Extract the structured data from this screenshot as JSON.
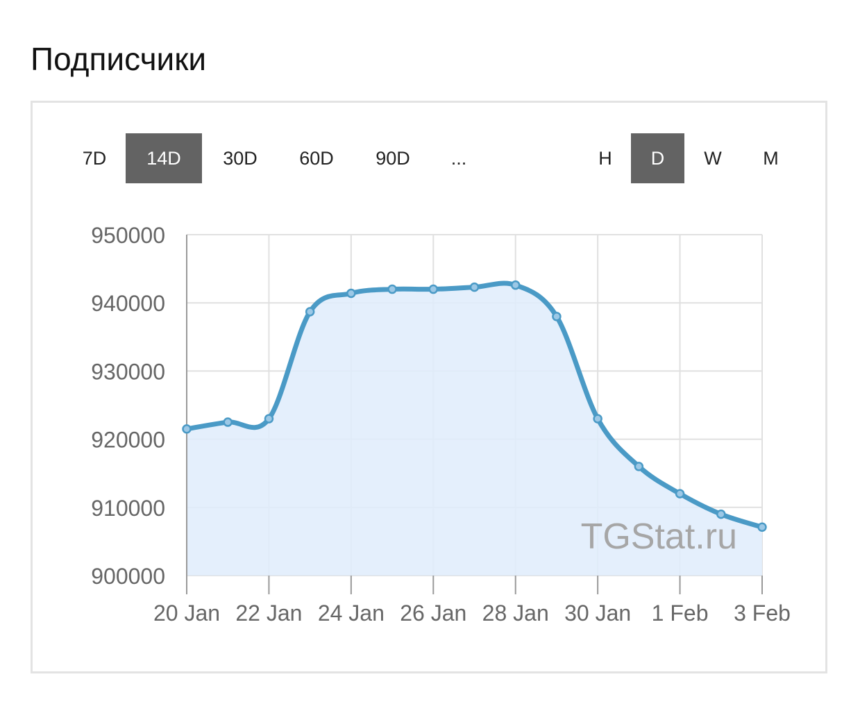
{
  "page": {
    "title": "Подписчики"
  },
  "controls": {
    "ranges": [
      {
        "label": "7D",
        "active": false
      },
      {
        "label": "14D",
        "active": true
      },
      {
        "label": "30D",
        "active": false
      },
      {
        "label": "60D",
        "active": false
      },
      {
        "label": "90D",
        "active": false
      },
      {
        "label": "...",
        "active": false
      }
    ],
    "granularity": [
      {
        "label": "H",
        "active": false
      },
      {
        "label": "D",
        "active": true
      },
      {
        "label": "W",
        "active": false
      },
      {
        "label": "M",
        "active": false
      }
    ]
  },
  "chart_data": {
    "type": "area",
    "title": "",
    "xlabel": "",
    "ylabel": "",
    "watermark": "TGStat.ru",
    "ylim": [
      900000,
      950000
    ],
    "yticks": [
      950000,
      940000,
      930000,
      920000,
      910000,
      900000
    ],
    "xlim": [
      "2024-01-20",
      "2024-02-03"
    ],
    "xticks": [
      {
        "date": "2024-01-20",
        "label": "20 Jan"
      },
      {
        "date": "2024-01-22",
        "label": "22 Jan"
      },
      {
        "date": "2024-01-24",
        "label": "24 Jan"
      },
      {
        "date": "2024-01-26",
        "label": "26 Jan"
      },
      {
        "date": "2024-01-28",
        "label": "28 Jan"
      },
      {
        "date": "2024-01-30",
        "label": "30 Jan"
      },
      {
        "date": "2024-02-01",
        "label": "1 Feb"
      },
      {
        "date": "2024-02-03",
        "label": "3 Feb"
      }
    ],
    "grid": true,
    "colors": {
      "line": "#4a9ac6",
      "fill": "#dfecfc",
      "point": "#9cc8e6",
      "grid": "#e0e0e0"
    },
    "series": [
      {
        "x": [
          "2024-01-20",
          "2024-01-21",
          "2024-01-22",
          "2024-01-23",
          "2024-01-24",
          "2024-01-25",
          "2024-01-26",
          "2024-01-27",
          "2024-01-28",
          "2024-01-29",
          "2024-01-30",
          "2024-01-31",
          "2024-02-01",
          "2024-02-02",
          "2024-02-03"
        ],
        "values": [
          921500,
          922500,
          923000,
          938700,
          941400,
          942000,
          942000,
          942300,
          942600,
          938000,
          923000,
          916000,
          912000,
          909000,
          907100
        ]
      }
    ]
  }
}
